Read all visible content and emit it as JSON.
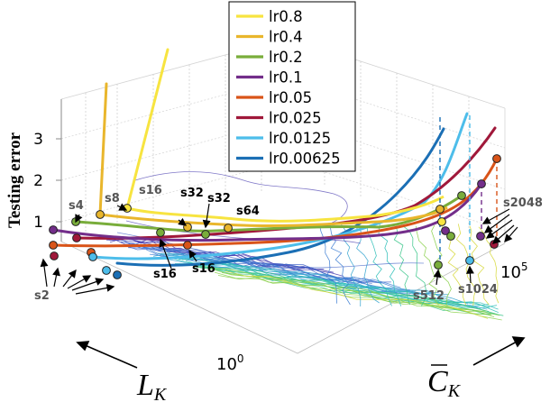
{
  "chart_data": {
    "type": "line",
    "ylabel": "Testing error",
    "xlabel_left": "L",
    "xlabel_left_sub": "K",
    "xlabel_right": "C",
    "xlabel_right_sub": "K",
    "left_tick_label_base": "10",
    "left_tick_label_exp": "0",
    "right_tick_label_base": "10",
    "right_tick_label_exp": "5",
    "ylim": [
      0,
      3.7
    ],
    "yticks": [
      "1",
      "2",
      "3"
    ],
    "grid": true,
    "legend_placement": "top-center",
    "series": [
      {
        "name": "lr0.8",
        "color": "#f7e440"
      },
      {
        "name": "lr0.4",
        "color": "#e9b62c"
      },
      {
        "name": "lr0.2",
        "color": "#79ad3b"
      },
      {
        "name": "lr0.1",
        "color": "#732e8a"
      },
      {
        "name": "lr0.05",
        "color": "#d95419"
      },
      {
        "name": "lr0.025",
        "color": "#a0183a"
      },
      {
        "name": "lr0.0125",
        "color": "#4dbdea"
      },
      {
        "name": "lr0.00625",
        "color": "#1b6fb5"
      }
    ],
    "annotations": {
      "s2": "s2",
      "s4": "s4",
      "s8": "s8",
      "s16": "s16",
      "s32": "s32",
      "s64": "s64",
      "s512": "s512",
      "s1024": "s1024",
      "s2048": "s2048"
    }
  }
}
